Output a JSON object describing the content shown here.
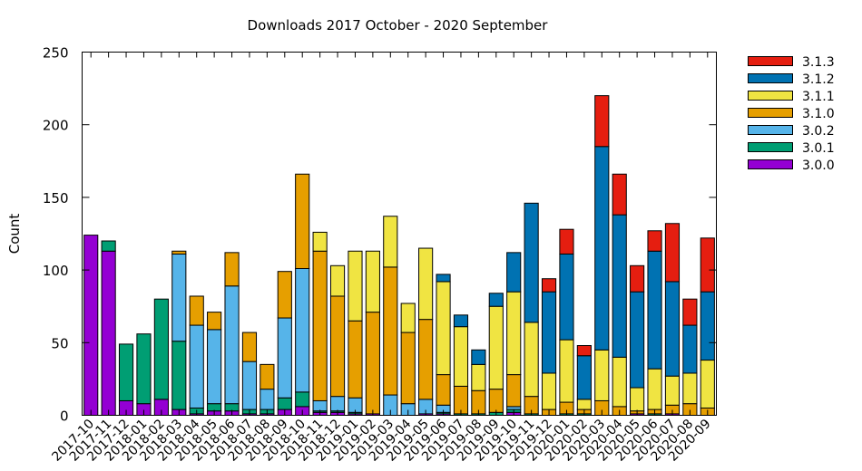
{
  "chart_data": {
    "type": "bar",
    "stacked": true,
    "title": "Downloads 2017 October - 2020 September",
    "xlabel": "",
    "ylabel": "Count",
    "ylim": [
      0,
      250
    ],
    "yticks": [
      0,
      50,
      100,
      150,
      200,
      250
    ],
    "grid": false,
    "legend_position": "top-right",
    "categories": [
      "2017-10",
      "2017-11",
      "2017-12",
      "2018-01",
      "2018-02",
      "2018-03",
      "2018-04",
      "2018-05",
      "2018-06",
      "2018-07",
      "2018-08",
      "2018-09",
      "2018-10",
      "2018-11",
      "2018-12",
      "2019-01",
      "2019-02",
      "2019-03",
      "2019-04",
      "2019-05",
      "2019-06",
      "2019-07",
      "2019-08",
      "2019-09",
      "2019-10",
      "2019-11",
      "2019-12",
      "2020-01",
      "2020-02",
      "2020-03",
      "2020-04",
      "2020-05",
      "2020-06",
      "2020-07",
      "2020-08",
      "2020-09"
    ],
    "series": [
      {
        "name": "3.0.0",
        "color": "#9400d3",
        "values": [
          124,
          113,
          10,
          8,
          11,
          4,
          1,
          3,
          3,
          1,
          1,
          4,
          6,
          2,
          2,
          1,
          1,
          0,
          0,
          1,
          1,
          0,
          0,
          0,
          2,
          0,
          0,
          0,
          0,
          0,
          0,
          1,
          0,
          1,
          0,
          0
        ]
      },
      {
        "name": "3.0.1",
        "color": "#009e73",
        "values": [
          0,
          7,
          39,
          48,
          69,
          47,
          4,
          5,
          5,
          3,
          3,
          8,
          10,
          1,
          1,
          1,
          0,
          0,
          0,
          0,
          1,
          1,
          1,
          2,
          2,
          1,
          0,
          1,
          1,
          0,
          0,
          0,
          1,
          0,
          0,
          0
        ]
      },
      {
        "name": "3.0.2",
        "color": "#56b4e9",
        "values": [
          0,
          0,
          0,
          0,
          0,
          60,
          57,
          51,
          81,
          33,
          14,
          55,
          85,
          7,
          10,
          10,
          0,
          14,
          8,
          10,
          5,
          0,
          0,
          0,
          2,
          0,
          0,
          0,
          0,
          0,
          0,
          0,
          0,
          0,
          0,
          0
        ]
      },
      {
        "name": "3.1.0",
        "color": "#e69f00",
        "values": [
          0,
          0,
          0,
          0,
          0,
          2,
          20,
          12,
          23,
          20,
          17,
          32,
          65,
          103,
          69,
          53,
          70,
          88,
          49,
          55,
          21,
          19,
          16,
          16,
          22,
          12,
          4,
          8,
          3,
          10,
          6,
          2,
          3,
          6,
          8,
          5
        ]
      },
      {
        "name": "3.1.1",
        "color": "#f0e442",
        "values": [
          0,
          0,
          0,
          0,
          0,
          0,
          0,
          0,
          0,
          0,
          0,
          0,
          0,
          13,
          21,
          48,
          42,
          35,
          20,
          49,
          64,
          41,
          18,
          57,
          57,
          51,
          25,
          43,
          7,
          35,
          34,
          16,
          28,
          20,
          21,
          33
        ]
      },
      {
        "name": "3.1.2",
        "color": "#0072b2",
        "values": [
          0,
          0,
          0,
          0,
          0,
          0,
          0,
          0,
          0,
          0,
          0,
          0,
          0,
          0,
          0,
          0,
          0,
          0,
          0,
          0,
          5,
          8,
          10,
          9,
          27,
          82,
          56,
          59,
          30,
          140,
          98,
          66,
          81,
          65,
          33,
          47
        ]
      },
      {
        "name": "3.1.3",
        "color": "#e51e10",
        "values": [
          0,
          0,
          0,
          0,
          0,
          0,
          0,
          0,
          0,
          0,
          0,
          0,
          0,
          0,
          0,
          0,
          0,
          0,
          0,
          0,
          0,
          0,
          0,
          0,
          0,
          0,
          9,
          17,
          7,
          35,
          28,
          18,
          14,
          40,
          18,
          37
        ]
      }
    ],
    "legend_order": [
      "3.1.3",
      "3.1.2",
      "3.1.1",
      "3.1.0",
      "3.0.2",
      "3.0.1",
      "3.0.0"
    ]
  }
}
